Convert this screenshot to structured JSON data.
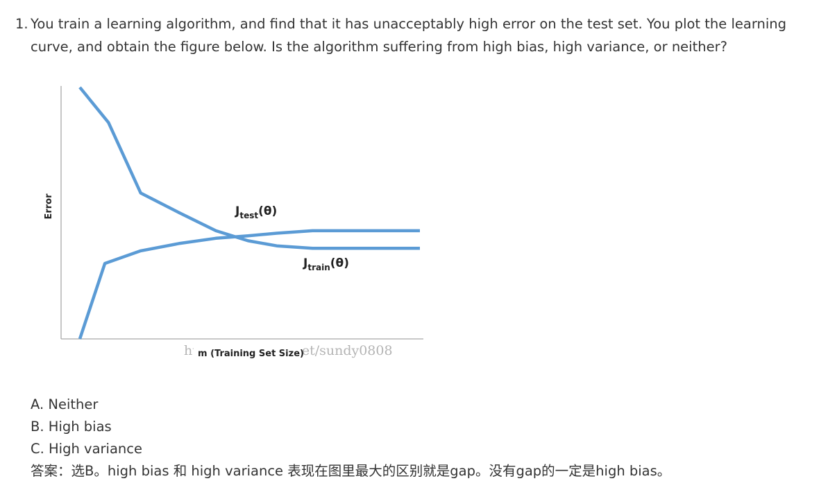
{
  "question": {
    "number": "1.",
    "text": "You train a learning algorithm, and find that it has unacceptably high error on the test set. You plot the learning curve, and obtain the figure below. Is the algorithm suffering from high bias, high variance, or neither?"
  },
  "figure": {
    "ylabel": "Error",
    "xlabel": "m (Training Set Size)",
    "test_label_main": "J",
    "test_label_sub": "test",
    "test_label_arg": "(θ)",
    "train_label_main": "J",
    "train_label_sub": "train",
    "train_label_arg": "(θ)",
    "watermark": "http://blog.csdn.net/sundy0808",
    "line_color": "#5b9bd5"
  },
  "chart_data": {
    "type": "line",
    "xlabel": "m (Training Set Size)",
    "ylabel": "Error",
    "grid": false,
    "series": [
      {
        "name": "Jtest(θ)",
        "x": [
          0.05,
          0.13,
          0.22,
          0.33,
          0.43,
          0.52,
          0.6,
          0.7,
          1.0
        ],
        "y": [
          1.0,
          0.86,
          0.58,
          0.5,
          0.43,
          0.39,
          0.37,
          0.36,
          0.36
        ]
      },
      {
        "name": "Jtrain(θ)",
        "x": [
          0.05,
          0.12,
          0.22,
          0.33,
          0.43,
          0.52,
          0.6,
          0.7,
          1.0
        ],
        "y": [
          0.0,
          0.3,
          0.35,
          0.38,
          0.4,
          0.41,
          0.42,
          0.43,
          0.43
        ]
      }
    ]
  },
  "options": {
    "a": "A. Neither",
    "b": "B. High bias",
    "c": "C. High variance",
    "answer": "答案：选B。high bias 和 high variance 表现在图里最大的区别就是gap。没有gap的一定是high bias。"
  }
}
